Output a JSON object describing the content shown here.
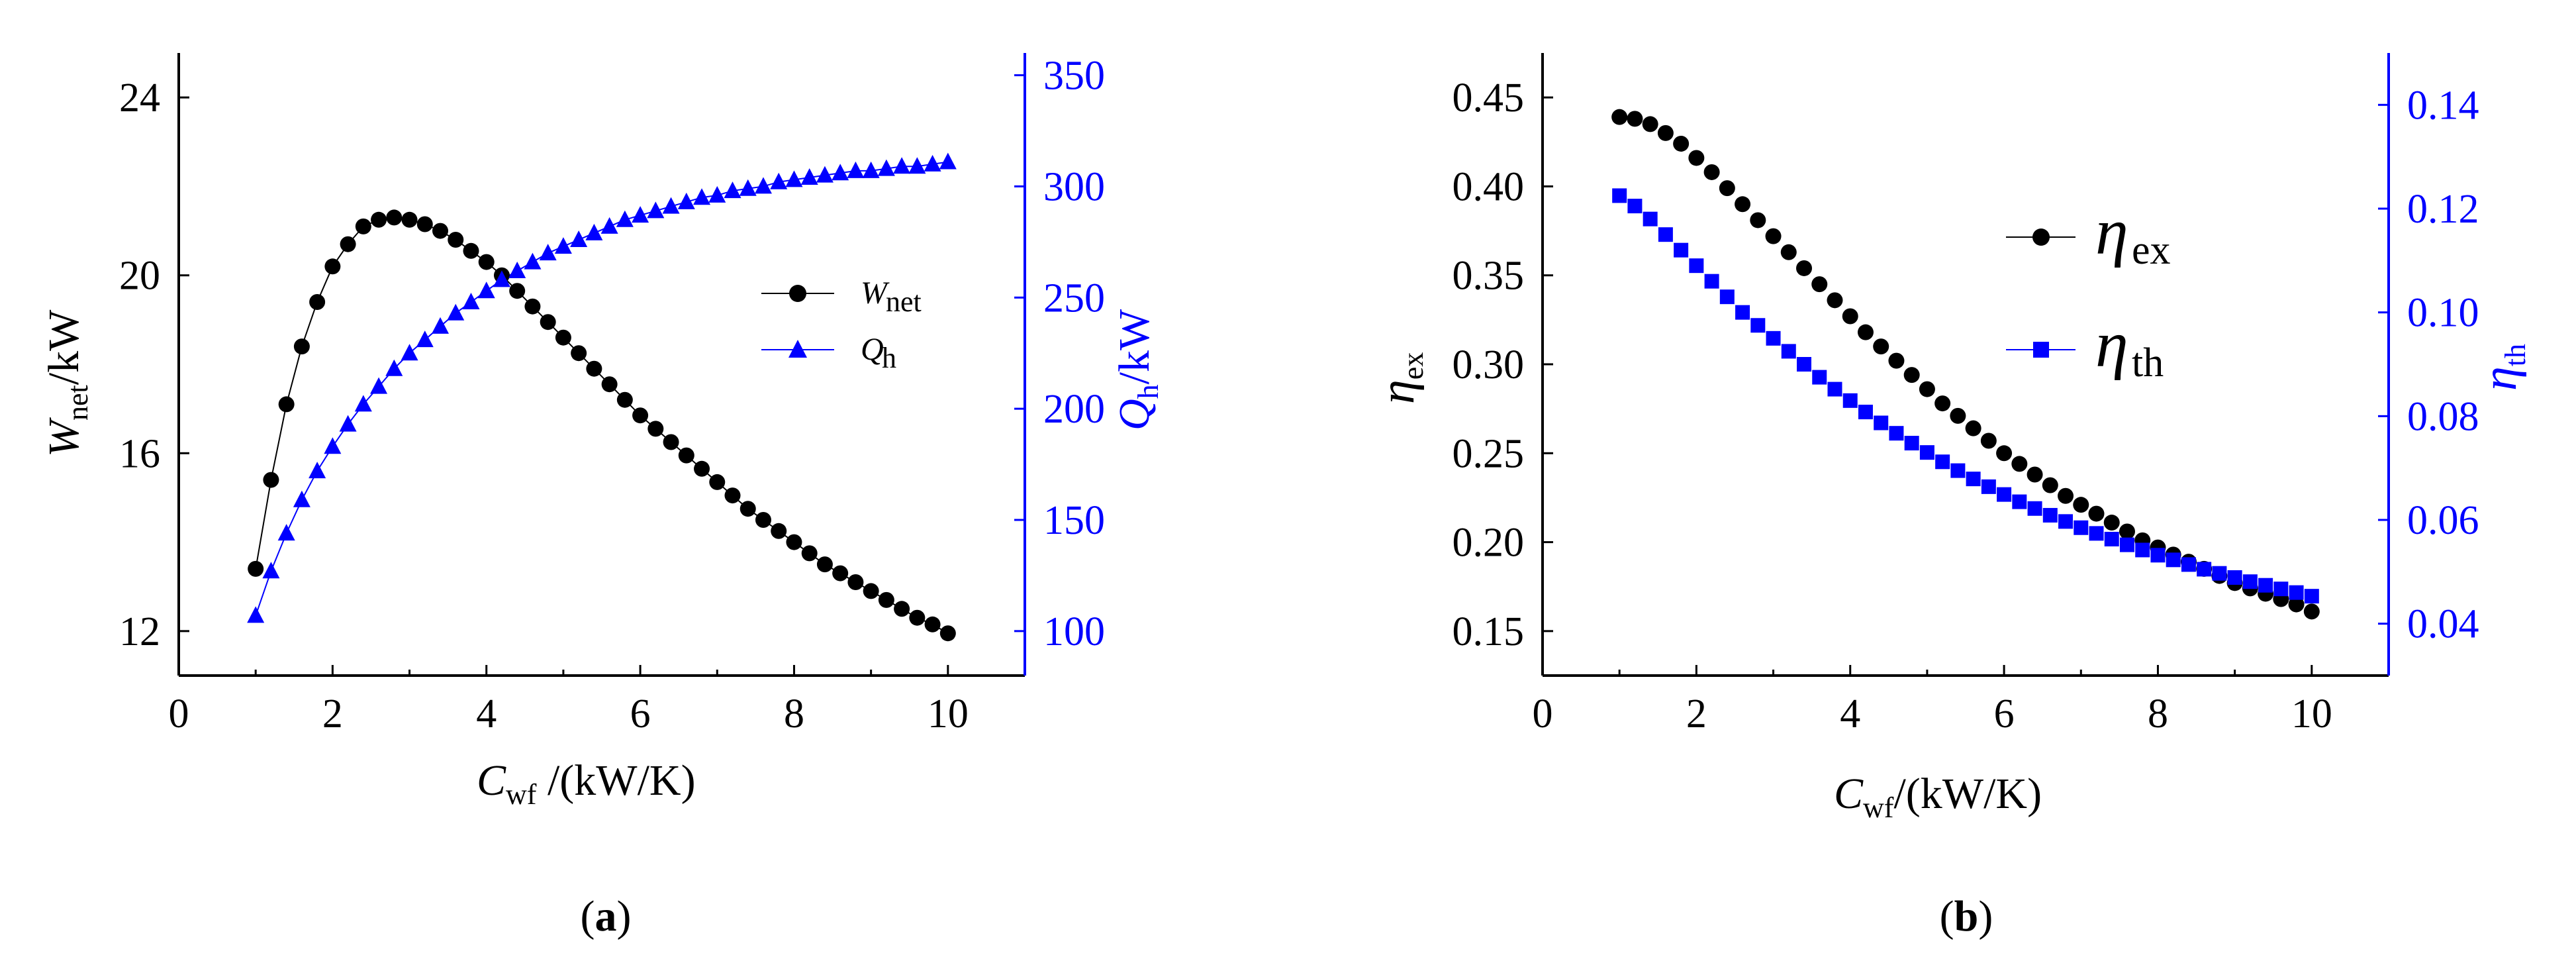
{
  "colors": {
    "black": "#000000",
    "blue": "#0000ff"
  },
  "chart_data": [
    {
      "type": "line",
      "panel": "a",
      "caption_pre": "(",
      "caption_letter": "a",
      "caption_post": ")",
      "x": {
        "main": "C",
        "sub": "wf",
        "rest": " /(kW/K)",
        "lim": [
          0,
          11
        ],
        "ticks": [
          0,
          2,
          4,
          6,
          8,
          10
        ]
      },
      "y_left": {
        "main": "W",
        "sub": "net",
        "rest": "/kW",
        "lim": [
          11,
          25
        ],
        "ticks": [
          12,
          16,
          20,
          24
        ]
      },
      "y_right": {
        "main": "Q",
        "sub": "h",
        "rest": "/kW",
        "lim": [
          80,
          360
        ],
        "ticks": [
          100,
          150,
          200,
          250,
          300,
          350
        ]
      },
      "legend": {
        "position": "center-right",
        "entries": [
          {
            "main": "W",
            "sub": "net",
            "marker": "circle",
            "color": "#000000"
          },
          {
            "main": "Q",
            "sub": "h",
            "marker": "triangle",
            "color": "#0000ff"
          }
        ]
      },
      "x_values": [
        1.0,
        1.2,
        1.4,
        1.6,
        1.8,
        2.0,
        2.2,
        2.4,
        2.6,
        2.8,
        3.0,
        3.2,
        3.4,
        3.6,
        3.8,
        4.0,
        4.2,
        4.4,
        4.6,
        4.8,
        5.0,
        5.2,
        5.4,
        5.6,
        5.8,
        6.0,
        6.2,
        6.4,
        6.6,
        6.8,
        7.0,
        7.2,
        7.4,
        7.6,
        7.8,
        8.0,
        8.2,
        8.4,
        8.6,
        8.8,
        9.0,
        9.2,
        9.4,
        9.6,
        9.8,
        10.0
      ],
      "series": [
        {
          "name": "W_net",
          "axis": "left",
          "marker": "circle",
          "color": "#000000",
          "values": [
            13.4,
            15.4,
            17.1,
            18.4,
            19.4,
            20.2,
            20.7,
            21.1,
            21.25,
            21.3,
            21.25,
            21.15,
            21.0,
            20.8,
            20.55,
            20.3,
            20.0,
            19.65,
            19.3,
            18.95,
            18.6,
            18.25,
            17.9,
            17.55,
            17.2,
            16.85,
            16.55,
            16.25,
            15.95,
            15.65,
            15.35,
            15.05,
            14.75,
            14.5,
            14.25,
            14.0,
            13.75,
            13.5,
            13.3,
            13.1,
            12.9,
            12.7,
            12.5,
            12.3,
            12.15,
            11.95
          ]
        },
        {
          "name": "Q_h",
          "axis": "right",
          "marker": "triangle",
          "color": "#0000ff",
          "values": [
            107,
            127,
            144,
            159,
            172,
            183,
            193,
            202,
            210,
            218,
            225,
            231,
            237,
            243,
            248,
            253,
            258,
            262,
            266,
            270,
            273,
            276,
            279,
            282,
            285,
            287,
            289,
            291,
            293,
            295,
            296,
            298,
            299,
            300,
            302,
            303,
            304,
            305,
            306,
            307,
            307,
            308,
            309,
            309,
            310,
            311
          ]
        }
      ]
    },
    {
      "type": "scatter",
      "panel": "b",
      "caption_pre": "(",
      "caption_letter": "b",
      "caption_post": ")",
      "x": {
        "main": "C",
        "sub": "wf",
        "rest": "/(kW/K)",
        "lim": [
          0,
          11
        ],
        "ticks": [
          0,
          2,
          4,
          6,
          8,
          10
        ]
      },
      "y_left": {
        "main": "η",
        "sub": "ex",
        "lim": [
          0.125,
          0.475
        ],
        "ticks": [
          "0.15",
          "0.20",
          "0.25",
          "0.30",
          "0.35",
          "0.40",
          "0.45"
        ]
      },
      "y_right": {
        "main": "η",
        "sub": "th",
        "lim": [
          0.03,
          0.15
        ],
        "ticks": [
          "0.04",
          "0.06",
          "0.08",
          "0.10",
          "0.12",
          "0.14"
        ]
      },
      "legend": {
        "position": "center-right",
        "entries": [
          {
            "main": "η",
            "sub": "ex",
            "marker": "circle",
            "color": "#000000"
          },
          {
            "main": "η",
            "sub": "th",
            "marker": "square",
            "color": "#0000ff"
          }
        ]
      },
      "x_values": [
        1.0,
        1.2,
        1.4,
        1.6,
        1.8,
        2.0,
        2.2,
        2.4,
        2.6,
        2.8,
        3.0,
        3.2,
        3.4,
        3.6,
        3.8,
        4.0,
        4.2,
        4.4,
        4.6,
        4.8,
        5.0,
        5.2,
        5.4,
        5.6,
        5.8,
        6.0,
        6.2,
        6.4,
        6.6,
        6.8,
        7.0,
        7.2,
        7.4,
        7.6,
        7.8,
        8.0,
        8.2,
        8.4,
        8.6,
        8.8,
        9.0,
        9.2,
        9.4,
        9.6,
        9.8,
        10.0
      ],
      "series": [
        {
          "name": "eta_ex",
          "axis": "left",
          "marker": "circle",
          "color": "#000000",
          "values": [
            0.439,
            0.438,
            0.435,
            0.43,
            0.424,
            0.416,
            0.408,
            0.399,
            0.39,
            0.381,
            0.372,
            0.363,
            0.354,
            0.345,
            0.336,
            0.327,
            0.318,
            0.31,
            0.302,
            0.294,
            0.286,
            0.278,
            0.271,
            0.264,
            0.257,
            0.25,
            0.244,
            0.238,
            0.232,
            0.226,
            0.221,
            0.216,
            0.211,
            0.206,
            0.201,
            0.197,
            0.193,
            0.189,
            0.185,
            0.181,
            0.177,
            0.174,
            0.171,
            0.168,
            0.165,
            0.161
          ]
        },
        {
          "name": "eta_th",
          "axis": "right",
          "marker": "square",
          "color": "#0000ff",
          "values": [
            0.1225,
            0.1205,
            0.118,
            0.115,
            0.112,
            0.109,
            0.106,
            0.103,
            0.1,
            0.0975,
            0.095,
            0.0925,
            0.09,
            0.0875,
            0.0852,
            0.083,
            0.0808,
            0.0787,
            0.0767,
            0.0748,
            0.073,
            0.0712,
            0.0695,
            0.0679,
            0.0664,
            0.0649,
            0.0635,
            0.0622,
            0.0609,
            0.0597,
            0.0585,
            0.0574,
            0.0563,
            0.0552,
            0.0542,
            0.0532,
            0.0523,
            0.0514,
            0.0505,
            0.0497,
            0.0489,
            0.0481,
            0.0474,
            0.0467,
            0.046,
            0.0453
          ]
        }
      ]
    }
  ]
}
